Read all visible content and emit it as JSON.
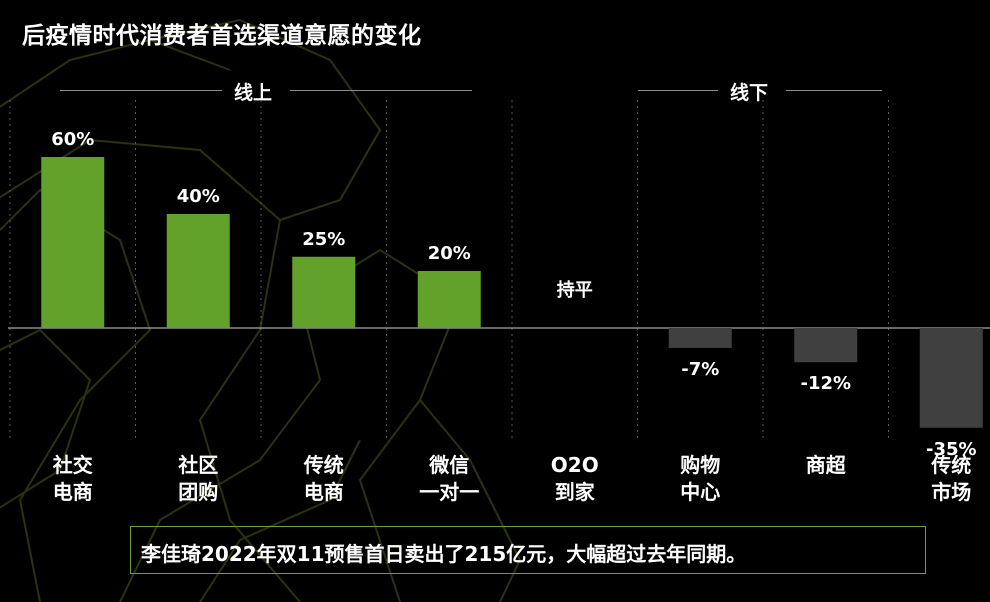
{
  "title": "后疫情时代消费者首选渠道意愿的变化",
  "groups": {
    "online": "线上",
    "offline": "线下"
  },
  "footer": "李佳琦2022年双11预售首日卖出了215亿元，大幅超过去年同期。",
  "colors": {
    "positive": "#62a22a",
    "negative": "#404040",
    "background": "#000000",
    "divider": "#8c8c8c",
    "footer_border": "#6aa132"
  },
  "chart_data": {
    "type": "bar",
    "categories": [
      [
        "社交",
        "电商"
      ],
      [
        "社区",
        "团购"
      ],
      [
        "传统",
        "电商"
      ],
      [
        "微信",
        "一对一"
      ],
      [
        "O2O",
        "到家"
      ],
      [
        "购物",
        "中心"
      ],
      [
        "商超"
      ],
      [
        "传统",
        "市场"
      ]
    ],
    "values": [
      60,
      40,
      25,
      20,
      0,
      -7,
      -12,
      -35
    ],
    "data_labels": [
      "60%",
      "40%",
      "25%",
      "20%",
      "持平",
      "-7%",
      "-12%",
      "-35%"
    ],
    "unit": "%",
    "title": "",
    "xlabel": "",
    "ylabel": "",
    "ylim": [
      -35,
      60
    ],
    "grid": false,
    "legend": "none"
  }
}
